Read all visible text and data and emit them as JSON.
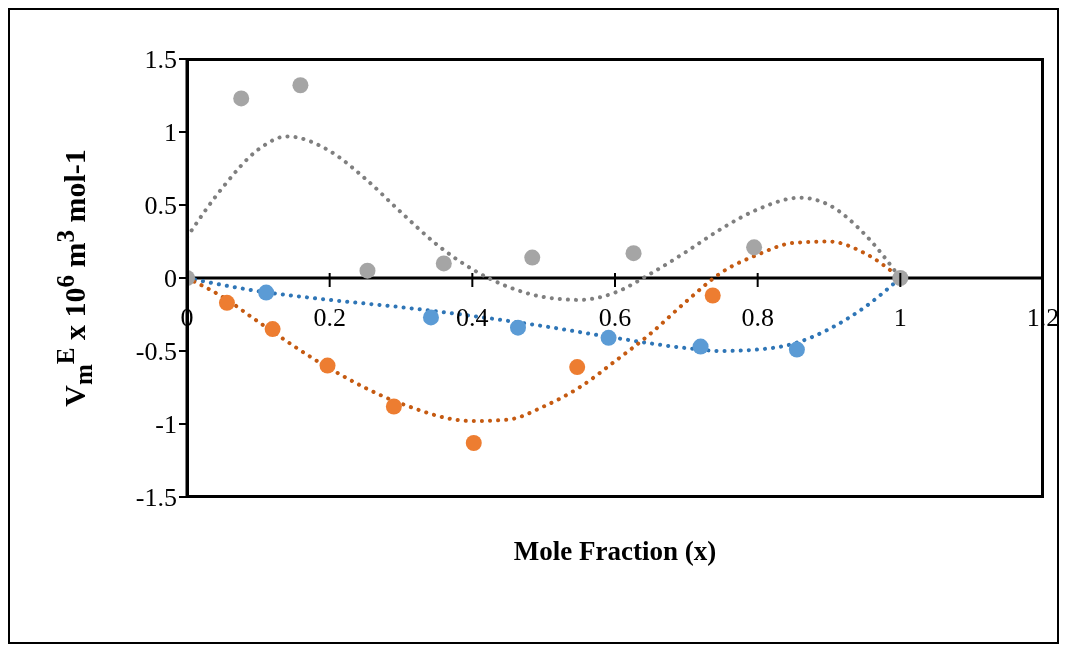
{
  "chart_data": {
    "type": "scatter",
    "xlabel": "Mole Fraction (x)",
    "ylabel": "V$_{m}$$^{E}$ x 10$^{6}$ m$^{3}$ mol-1",
    "xlim": [
      0,
      1.2
    ],
    "xticks": [
      0,
      0.2,
      0.4,
      0.6,
      0.8,
      1,
      1.2
    ],
    "ylim": [
      -1.5,
      1.5
    ],
    "yticks": [
      -1.5,
      -1,
      -0.5,
      0,
      0.5,
      1,
      1.5
    ],
    "grid": false,
    "legend": false,
    "series": [
      {
        "color": "#5b9bd5",
        "marker": "circle",
        "x": [
          0.111,
          0.342,
          0.464,
          0.591,
          0.72,
          0.855
        ],
        "values": [
          -0.1,
          -0.27,
          -0.34,
          -0.41,
          -0.47,
          -0.49
        ]
      },
      {
        "color": "#ed7d31",
        "marker": "circle",
        "x": [
          0.056,
          0.12,
          0.197,
          0.29,
          0.402,
          0.547,
          0.737
        ],
        "values": [
          -0.17,
          -0.35,
          -0.6,
          -0.88,
          -1.13,
          -0.61,
          -0.12
        ]
      },
      {
        "color": "#a5a5a5",
        "marker": "circle",
        "x": [
          0,
          0.076,
          0.159,
          0.253,
          0.36,
          0.484,
          0.626,
          0.795,
          1
        ],
        "values": [
          0,
          1.23,
          1.32,
          0.05,
          0.1,
          0.14,
          0.17,
          0.21,
          0
        ]
      },
      {
        "type": "line",
        "color": "#2e75b6",
        "marker": "none",
        "line_style": "dotted",
        "x": [
          0,
          0.1,
          0.2,
          0.3,
          0.4,
          0.5,
          0.6,
          0.7,
          0.75,
          0.8,
          0.85,
          0.9,
          0.95,
          1
        ],
        "values": [
          0,
          -0.09,
          -0.15,
          -0.2,
          -0.26,
          -0.33,
          -0.41,
          -0.48,
          -0.5,
          -0.49,
          -0.45,
          -0.35,
          -0.2,
          0
        ]
      },
      {
        "type": "line",
        "color": "#c55a11",
        "marker": "none",
        "line_style": "dotted",
        "x": [
          0,
          0.05,
          0.1,
          0.2,
          0.3,
          0.4,
          0.45,
          0.5,
          0.55,
          0.6,
          0.65,
          0.7,
          0.75,
          0.8,
          0.85,
          0.9,
          0.95,
          1
        ],
        "values": [
          0,
          -0.13,
          -0.3,
          -0.62,
          -0.86,
          -0.98,
          -0.97,
          -0.88,
          -0.75,
          -0.57,
          -0.38,
          -0.16,
          0.04,
          0.16,
          0.24,
          0.25,
          0.17,
          0
        ]
      },
      {
        "type": "line",
        "color": "#7f7f7f",
        "marker": "none",
        "line_style": "dotted",
        "x": [
          0,
          0.05,
          0.1,
          0.14,
          0.2,
          0.25,
          0.3,
          0.35,
          0.4,
          0.45,
          0.5,
          0.55,
          0.6,
          0.65,
          0.7,
          0.75,
          0.8,
          0.86,
          0.9,
          0.95,
          1
        ],
        "values": [
          0.28,
          0.62,
          0.88,
          0.97,
          0.87,
          0.68,
          0.45,
          0.23,
          0.06,
          -0.06,
          -0.13,
          -0.15,
          -0.1,
          0.03,
          0.18,
          0.34,
          0.47,
          0.55,
          0.5,
          0.3,
          0
        ]
      }
    ]
  }
}
